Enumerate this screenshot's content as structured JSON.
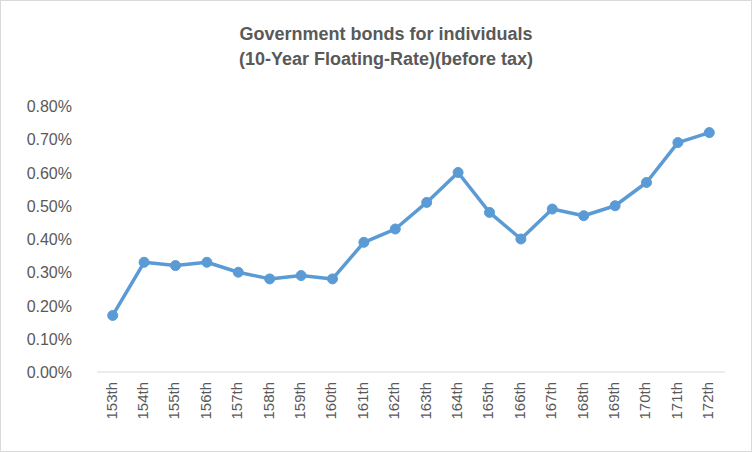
{
  "chart_data": {
    "type": "line",
    "title": "Government bonds for individuals\n(10-Year Floating-Rate)(before tax)",
    "categories": [
      "153th",
      "154th",
      "155th",
      "156th",
      "157th",
      "158th",
      "159th",
      "160th",
      "161th",
      "162th",
      "163th",
      "164th",
      "165th",
      "166th",
      "167th",
      "168th",
      "169th",
      "170th",
      "171th",
      "172th"
    ],
    "values": [
      0.17,
      0.33,
      0.32,
      0.33,
      0.3,
      0.28,
      0.29,
      0.28,
      0.39,
      0.43,
      0.51,
      0.6,
      0.48,
      0.4,
      0.49,
      0.47,
      0.5,
      0.57,
      0.69,
      0.72
    ],
    "color": "#5b9bd5",
    "marker": "circle",
    "line_style": "solid",
    "ylim": [
      0,
      0.8
    ],
    "yticks": [
      {
        "value": 0,
        "label": "0.00%"
      },
      {
        "value": 0.1,
        "label": "0.10%"
      },
      {
        "value": 0.2,
        "label": "0.20%"
      },
      {
        "value": 0.3,
        "label": "0.30%"
      },
      {
        "value": 0.4,
        "label": "0.40%"
      },
      {
        "value": 0.5,
        "label": "0.50%"
      },
      {
        "value": 0.6,
        "label": "0.60%"
      },
      {
        "value": 0.7,
        "label": "0.70%"
      },
      {
        "value": 0.8,
        "label": "0.80%"
      }
    ],
    "grid": false
  }
}
